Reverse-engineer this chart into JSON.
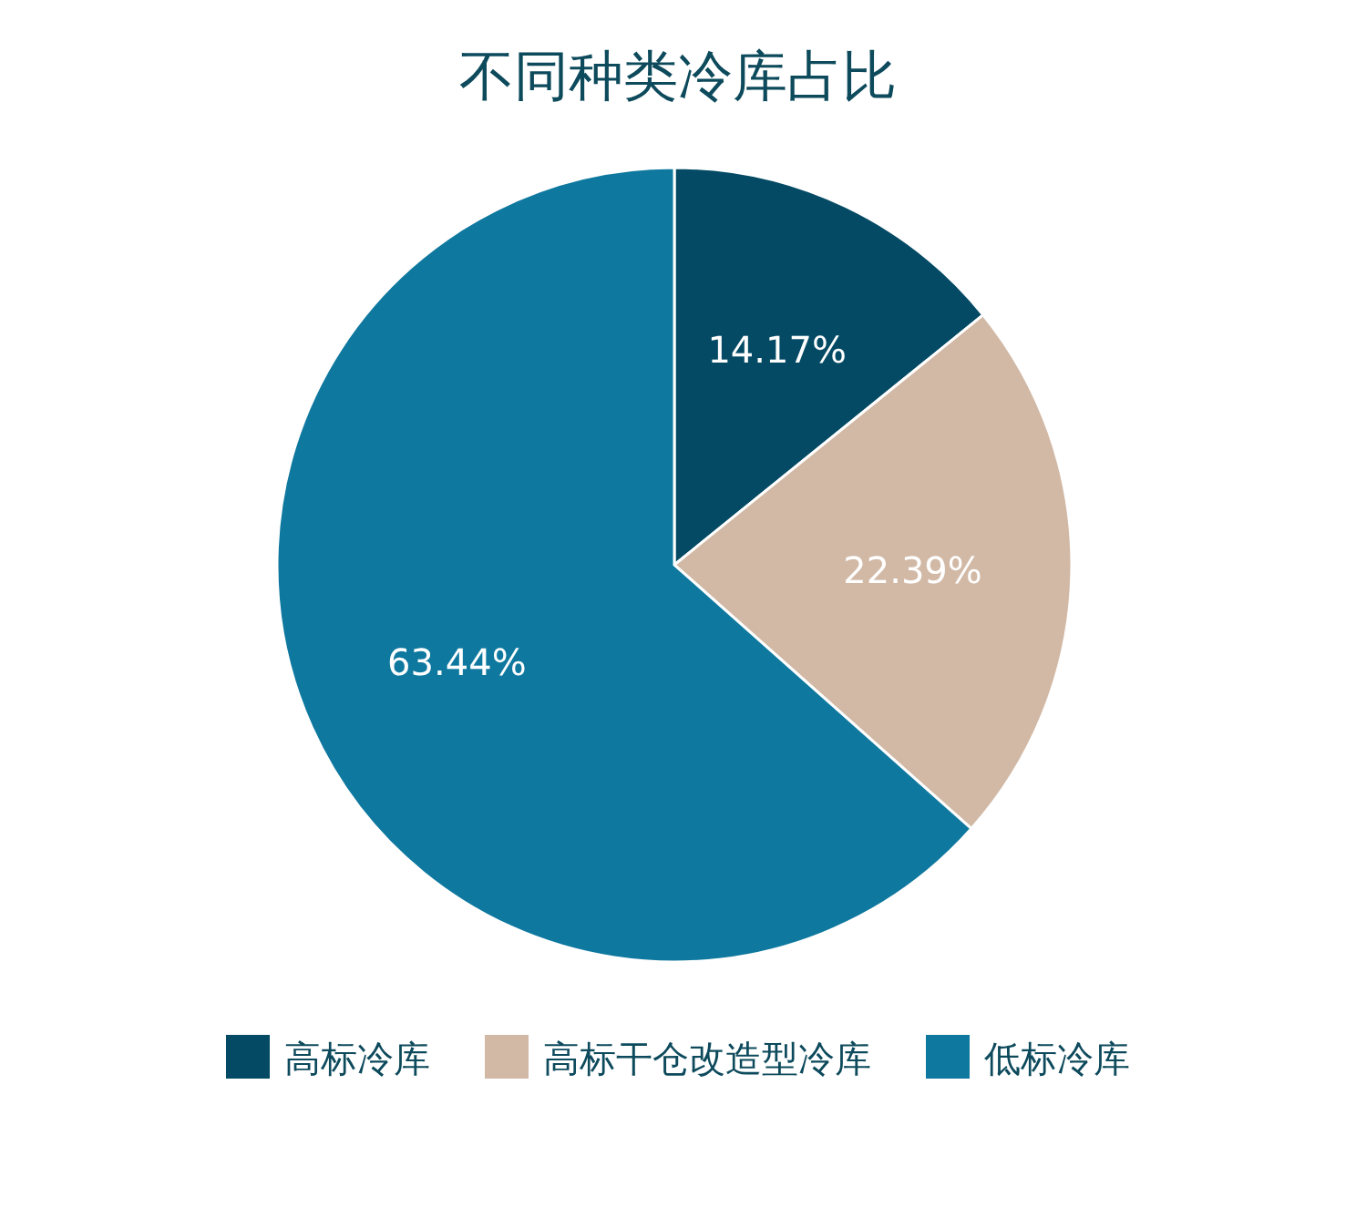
{
  "chart_data": {
    "type": "pie",
    "title": "不同种类冷库占比",
    "categories": [
      "高标冷库",
      "高标干仓改造型冷库",
      "低标冷库"
    ],
    "values": [
      14.17,
      22.39,
      63.44
    ],
    "colors": [
      "#044a64",
      "#d2b9a6",
      "#0e789f"
    ],
    "value_labels": [
      "14.17%",
      "22.39%",
      "63.44%"
    ],
    "legend": "bottom"
  }
}
